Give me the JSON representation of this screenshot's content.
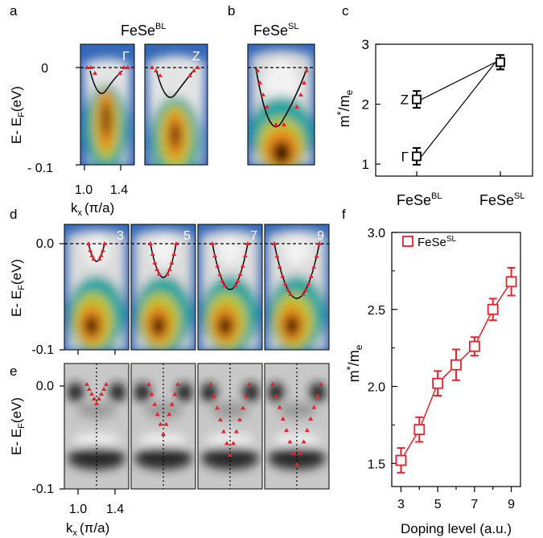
{
  "panel_labels": {
    "a": "a",
    "b": "b",
    "c": "c",
    "d": "d",
    "e": "e",
    "f": "f"
  },
  "panel_a": {
    "title_base": "FeSe",
    "title_sup": "BL",
    "ylabel": "E- E",
    "ylabel_sub": "F",
    "ylabel_unit": "(eV)",
    "yticks": [
      "0",
      "- 0.1"
    ],
    "xticks": [
      "1.0",
      "1.4"
    ],
    "xlabel": "k",
    "xlabel_sub": "x",
    "xlabel_unit": "(π/a)",
    "images": [
      {
        "label": "Γ"
      },
      {
        "label": "Z"
      }
    ]
  },
  "panel_b": {
    "title_base": "FeSe",
    "title_sup": "SL"
  },
  "panel_d": {
    "ylabel": "E- E",
    "ylabel_sub": "F",
    "ylabel_unit": "(eV)",
    "yticks": [
      "0.0",
      "-0.1"
    ],
    "images": [
      {
        "label": "3"
      },
      {
        "label": "5"
      },
      {
        "label": "7"
      },
      {
        "label": "9"
      }
    ]
  },
  "panel_e": {
    "ylabel": "E- E",
    "ylabel_sub": "F",
    "ylabel_unit": "(eV)",
    "yticks": [
      "0.0",
      "-0.1"
    ],
    "xticks": [
      "1.0",
      "1.4"
    ],
    "xlabel": "k",
    "xlabel_sub": "x",
    "xlabel_unit": "(π/a)"
  },
  "chart_data": [
    {
      "panel": "c",
      "type": "line",
      "categories": [
        "FeSe",
        "FeSe"
      ],
      "category_sups": [
        "BL",
        "SL"
      ],
      "ylabel": "m*/m_e",
      "ylim": [
        0.8,
        3
      ],
      "yticks": [
        "1",
        "2",
        "3"
      ],
      "series": [
        {
          "name": "Z",
          "values": [
            2.08,
            2.7
          ],
          "errors": [
            0.14,
            0.12
          ]
        },
        {
          "name": "Γ",
          "values": [
            1.13,
            2.7
          ],
          "errors": [
            0.14,
            0.12
          ]
        }
      ],
      "colors": {
        "marker": "#000000",
        "line": "#000000"
      }
    },
    {
      "panel": "f",
      "type": "line",
      "xlabel": "Doping level (a.u.)",
      "ylabel": "m*/m_e",
      "xlim": [
        2.5,
        9.5
      ],
      "ylim": [
        1.35,
        3.0
      ],
      "xticks": [
        "3",
        "5",
        "7",
        "9"
      ],
      "yticks": [
        "1.5",
        "2.0",
        "2.5",
        "3.0"
      ],
      "legend": {
        "base": "FeSe",
        "sup": "SL",
        "position": "top-left"
      },
      "series": [
        {
          "name": "FeSeSL",
          "x": [
            3,
            4,
            5,
            6,
            7,
            8,
            9
          ],
          "y": [
            1.52,
            1.72,
            2.02,
            2.14,
            2.26,
            2.5,
            2.68
          ],
          "errors": [
            0.08,
            0.08,
            0.08,
            0.1,
            0.06,
            0.07,
            0.09
          ]
        }
      ],
      "colors": {
        "series": "#e8212a"
      }
    }
  ]
}
